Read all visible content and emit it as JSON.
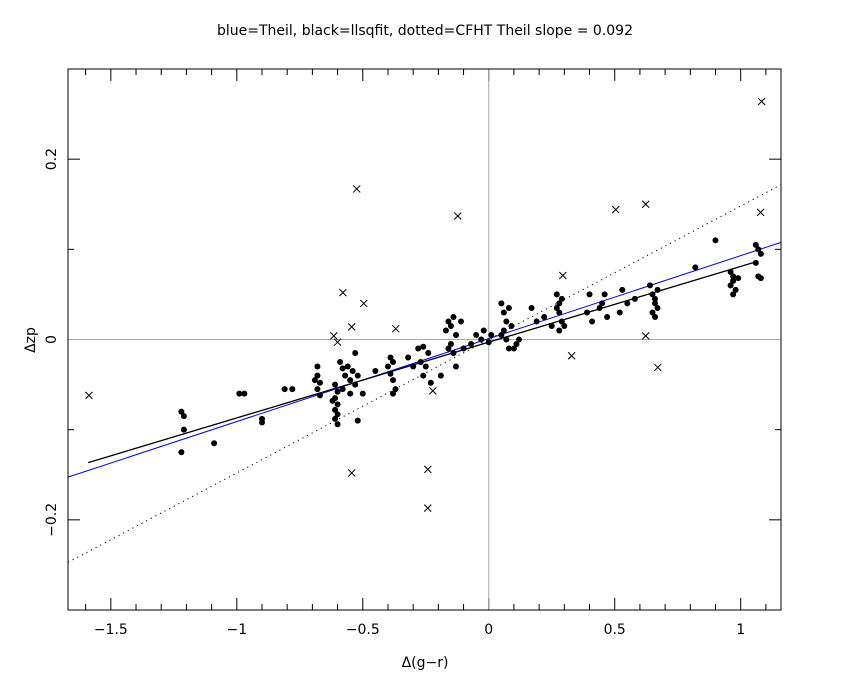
{
  "chart_data": {
    "type": "scatter",
    "title": "blue=Theil, black=llsqfit, dotted=CFHT   Theil slope =  0.092",
    "xlabel": "Δ(g−r)",
    "ylabel": "Δzp",
    "xlim": [
      -1.67,
      1.16
    ],
    "ylim": [
      -0.3,
      0.3
    ],
    "xticks": [
      -1.5,
      -1,
      -0.5,
      0,
      0.5,
      1
    ],
    "xtick_labels": [
      "−1.5",
      "−1",
      "−0.5",
      "0",
      "0.5",
      "1"
    ],
    "yticks": [
      -0.2,
      0,
      0.2
    ],
    "ytick_labels": [
      "−0.2",
      "0",
      "0.2"
    ],
    "grid": false,
    "zero_lines": true,
    "colors": {
      "theil": "#0000ff",
      "llsqfit": "#000000",
      "cfht": "#000000",
      "zero": "#aaaaaa"
    },
    "fit_lines": [
      {
        "name": "Theil",
        "style": "solid-blue",
        "slope": 0.092,
        "intercept": 0.001,
        "x": [
          -1.67,
          1.16
        ]
      },
      {
        "name": "llsqfit",
        "style": "solid-black",
        "slope": 0.084,
        "intercept": -0.003,
        "x": [
          -1.59,
          1.07
        ]
      },
      {
        "name": "CFHT",
        "style": "dotted",
        "slope": 0.148,
        "intercept": -0.0,
        "x": [
          -1.67,
          1.16
        ]
      }
    ],
    "rejected_points": [
      [
        -1.587,
        -0.062
      ],
      [
        -0.524,
        0.167
      ],
      [
        -0.496,
        0.04
      ],
      [
        -0.544,
        0.014
      ],
      [
        -0.579,
        0.052
      ],
      [
        -0.615,
        0.004
      ],
      [
        -0.6,
        -0.003
      ],
      [
        -0.369,
        0.012
      ],
      [
        -0.544,
        -0.148
      ],
      [
        -0.242,
        -0.144
      ],
      [
        -0.242,
        -0.187
      ],
      [
        -0.222,
        -0.057
      ],
      [
        -0.123,
        0.137
      ],
      [
        0.294,
        0.071
      ],
      [
        0.329,
        -0.018
      ],
      [
        0.504,
        0.144
      ],
      [
        0.623,
        0.15
      ],
      [
        0.623,
        0.004
      ],
      [
        0.671,
        -0.031
      ],
      [
        1.079,
        0.141
      ],
      [
        1.083,
        0.264
      ]
    ],
    "points": [
      [
        -1.22,
        -0.08
      ],
      [
        -1.21,
        -0.085
      ],
      [
        -1.21,
        -0.1
      ],
      [
        -1.22,
        -0.125
      ],
      [
        -1.09,
        -0.115
      ],
      [
        -0.99,
        -0.06
      ],
      [
        -0.97,
        -0.06
      ],
      [
        -0.9,
        -0.088
      ],
      [
        -0.9,
        -0.092
      ],
      [
        -0.81,
        -0.055
      ],
      [
        -0.78,
        -0.055
      ],
      [
        -0.68,
        -0.03
      ],
      [
        -0.68,
        -0.04
      ],
      [
        -0.67,
        -0.048
      ],
      [
        -0.68,
        -0.055
      ],
      [
        -0.67,
        -0.062
      ],
      [
        -0.69,
        -0.045
      ],
      [
        -0.61,
        -0.05
      ],
      [
        -0.6,
        -0.058
      ],
      [
        -0.61,
        -0.065
      ],
      [
        -0.6,
        -0.072
      ],
      [
        -0.61,
        -0.078
      ],
      [
        -0.6,
        -0.083
      ],
      [
        -0.61,
        -0.088
      ],
      [
        -0.6,
        -0.094
      ],
      [
        -0.62,
        -0.068
      ],
      [
        -0.59,
        -0.025
      ],
      [
        -0.58,
        -0.032
      ],
      [
        -0.57,
        -0.04
      ],
      [
        -0.56,
        -0.03
      ],
      [
        -0.55,
        -0.045
      ],
      [
        -0.54,
        -0.035
      ],
      [
        -0.53,
        -0.05
      ],
      [
        -0.55,
        -0.06
      ],
      [
        -0.52,
        -0.04
      ],
      [
        -0.53,
        -0.015
      ],
      [
        -0.58,
        -0.055
      ],
      [
        -0.5,
        -0.06
      ],
      [
        -0.52,
        -0.09
      ],
      [
        -0.45,
        -0.035
      ],
      [
        -0.4,
        -0.03
      ],
      [
        -0.39,
        -0.038
      ],
      [
        -0.38,
        -0.025
      ],
      [
        -0.38,
        -0.045
      ],
      [
        -0.39,
        -0.02
      ],
      [
        -0.37,
        -0.055
      ],
      [
        -0.38,
        -0.06
      ],
      [
        -0.32,
        -0.02
      ],
      [
        -0.3,
        -0.03
      ],
      [
        -0.28,
        -0.01
      ],
      [
        -0.27,
        -0.025
      ],
      [
        -0.26,
        -0.04
      ],
      [
        -0.25,
        -0.03
      ],
      [
        -0.24,
        -0.015
      ],
      [
        -0.23,
        -0.048
      ],
      [
        -0.26,
        -0.008
      ],
      [
        -0.19,
        -0.04
      ],
      [
        -0.17,
        0.01
      ],
      [
        -0.16,
        0.02
      ],
      [
        -0.15,
        0.015
      ],
      [
        -0.14,
        0.025
      ],
      [
        -0.13,
        0.005
      ],
      [
        -0.15,
        -0.005
      ],
      [
        -0.14,
        -0.015
      ],
      [
        -0.16,
        -0.01
      ],
      [
        -0.11,
        0.02
      ],
      [
        -0.13,
        -0.03
      ],
      [
        -0.1,
        -0.01
      ],
      [
        -0.07,
        -0.005
      ],
      [
        -0.05,
        0.005
      ],
      [
        -0.03,
        0.0
      ],
      [
        -0.02,
        0.01
      ],
      [
        0.0,
        -0.003
      ],
      [
        0.01,
        0.005
      ],
      [
        0.05,
        0.04
      ],
      [
        0.06,
        0.03
      ],
      [
        0.07,
        0.02
      ],
      [
        0.06,
        0.01
      ],
      [
        0.07,
        0.0
      ],
      [
        0.08,
        0.035
      ],
      [
        0.09,
        0.015
      ],
      [
        0.05,
        0.005
      ],
      [
        0.08,
        -0.01
      ],
      [
        0.1,
        -0.01
      ],
      [
        0.11,
        -0.005
      ],
      [
        0.12,
        0.0
      ],
      [
        0.17,
        0.035
      ],
      [
        0.19,
        0.02
      ],
      [
        0.22,
        0.025
      ],
      [
        0.25,
        0.015
      ],
      [
        0.27,
        0.05
      ],
      [
        0.28,
        0.04
      ],
      [
        0.28,
        0.03
      ],
      [
        0.29,
        0.02
      ],
      [
        0.28,
        0.01
      ],
      [
        0.29,
        0.045
      ],
      [
        0.3,
        0.015
      ],
      [
        0.27,
        0.035
      ],
      [
        0.39,
        0.03
      ],
      [
        0.41,
        0.02
      ],
      [
        0.44,
        0.035
      ],
      [
        0.45,
        0.04
      ],
      [
        0.47,
        0.025
      ],
      [
        0.46,
        0.05
      ],
      [
        0.4,
        0.05
      ],
      [
        0.64,
        0.06
      ],
      [
        0.65,
        0.05
      ],
      [
        0.66,
        0.045
      ],
      [
        0.66,
        0.04
      ],
      [
        0.67,
        0.035
      ],
      [
        0.65,
        0.03
      ],
      [
        0.67,
        0.055
      ],
      [
        0.66,
        0.025
      ],
      [
        0.55,
        0.04
      ],
      [
        0.52,
        0.03
      ],
      [
        0.53,
        0.055
      ],
      [
        0.58,
        0.045
      ],
      [
        0.82,
        0.08
      ],
      [
        0.9,
        0.11
      ],
      [
        0.96,
        0.075
      ],
      [
        0.97,
        0.07
      ],
      [
        0.97,
        0.065
      ],
      [
        0.96,
        0.06
      ],
      [
        0.98,
        0.055
      ],
      [
        0.97,
        0.05
      ],
      [
        0.99,
        0.068
      ],
      [
        1.06,
        0.105
      ],
      [
        1.07,
        0.1
      ],
      [
        1.08,
        0.095
      ],
      [
        1.06,
        0.085
      ],
      [
        1.07,
        0.07
      ],
      [
        1.08,
        0.068
      ]
    ]
  }
}
